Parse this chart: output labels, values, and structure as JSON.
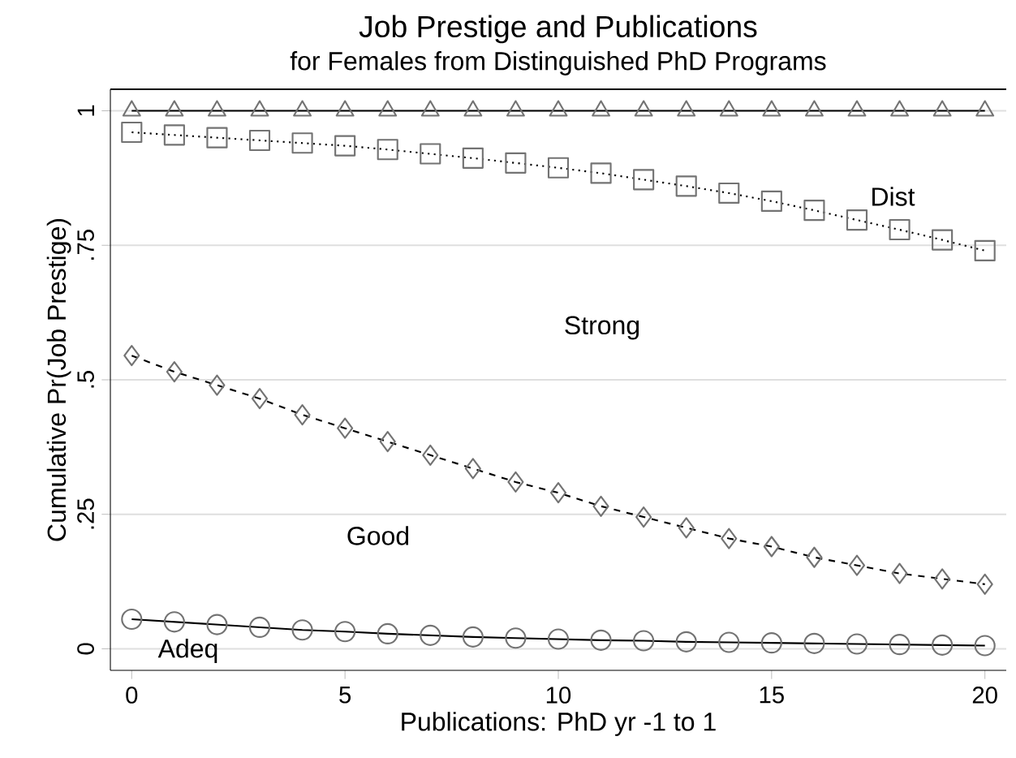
{
  "chart_data": {
    "type": "line",
    "title": "Job Prestige and Publications",
    "subtitle": "for Females from Distinguished PhD Programs",
    "xlabel": "Publications: PhD yr -1 to 1",
    "ylabel": "Cumulative Pr(Job Prestige)",
    "x": [
      0,
      1,
      2,
      3,
      4,
      5,
      6,
      7,
      8,
      9,
      10,
      11,
      12,
      13,
      14,
      15,
      16,
      17,
      18,
      19,
      20
    ],
    "series": [
      {
        "color": "#000000",
        "marker": "circle",
        "line_style": "solid",
        "values": [
          0.055,
          0.05,
          0.045,
          0.04,
          0.035,
          0.032,
          0.028,
          0.025,
          0.022,
          0.02,
          0.018,
          0.016,
          0.015,
          0.013,
          0.012,
          0.011,
          0.01,
          0.009,
          0.008,
          0.007,
          0.006
        ]
      },
      {
        "color": "#000000",
        "marker": "diamond",
        "line_style": "dashed",
        "values": [
          0.545,
          0.515,
          0.49,
          0.465,
          0.435,
          0.41,
          0.385,
          0.36,
          0.335,
          0.31,
          0.29,
          0.265,
          0.245,
          0.225,
          0.205,
          0.19,
          0.17,
          0.155,
          0.14,
          0.13,
          0.12
        ]
      },
      {
        "color": "#000000",
        "marker": "square",
        "line_style": "dotted",
        "values": [
          0.96,
          0.955,
          0.95,
          0.945,
          0.94,
          0.935,
          0.928,
          0.92,
          0.912,
          0.903,
          0.894,
          0.884,
          0.872,
          0.86,
          0.847,
          0.832,
          0.815,
          0.797,
          0.779,
          0.76,
          0.74
        ]
      },
      {
        "color": "#000000",
        "marker": "triangle",
        "line_style": "solid",
        "values": [
          1,
          1,
          1,
          1,
          1,
          1,
          1,
          1,
          1,
          1,
          1,
          1,
          1,
          1,
          1,
          1,
          1,
          1,
          1,
          1,
          1
        ]
      }
    ],
    "xlim": [
      -0.5,
      20.5
    ],
    "ylim": [
      -0.04,
      1.04
    ],
    "xticks": [
      0,
      5,
      10,
      15,
      20
    ],
    "yticks": [
      {
        "value": 0,
        "label": "0"
      },
      {
        "value": 0.25,
        "label": ".25"
      },
      {
        "value": 0.5,
        "label": ".5"
      },
      {
        "value": 0.75,
        "label": ".75"
      },
      {
        "value": 1,
        "label": "1"
      }
    ],
    "grid": "y",
    "annotations": [
      "Dist",
      "Strong",
      "Good",
      "Adeq"
    ]
  }
}
